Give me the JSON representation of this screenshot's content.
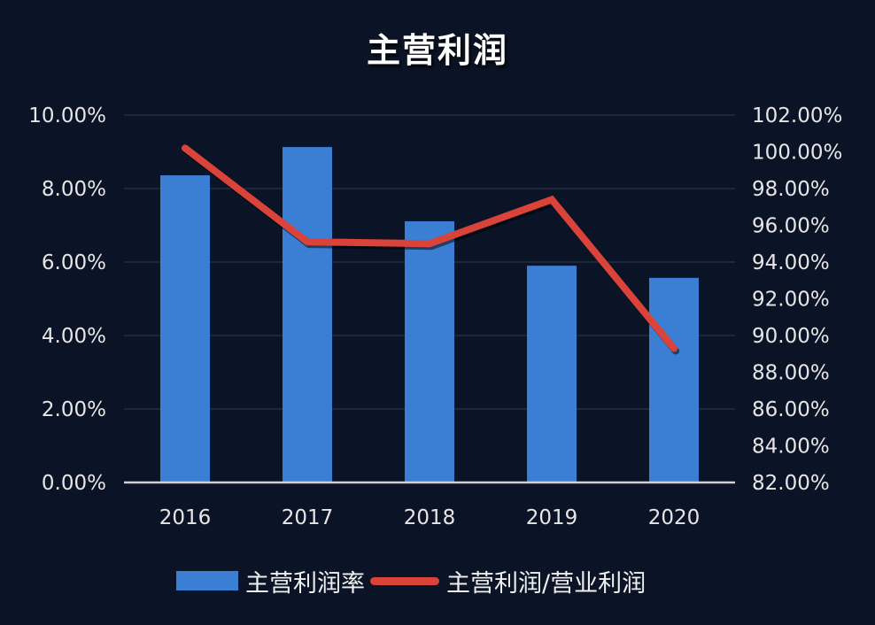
{
  "title": "主营利润",
  "colors": {
    "background": "#0b1326",
    "bar": "#3b7fd4",
    "line": "#d9433a",
    "grid": "#2a3346",
    "axis": "#d0d0d0",
    "text": "#e6e6e6"
  },
  "legend": {
    "bar_label": "主营利润率",
    "line_label": "主营利润/营业利润"
  },
  "chart_data": {
    "type": "bar+line",
    "title": "主营利润",
    "categories": [
      "2016",
      "2017",
      "2018",
      "2019",
      "2020"
    ],
    "series": [
      {
        "name": "主营利润率",
        "type": "bar",
        "axis": "left",
        "values": [
          8.36,
          9.13,
          7.11,
          5.9,
          5.57
        ],
        "unit": "%"
      },
      {
        "name": "主营利润/营业利润",
        "type": "line",
        "axis": "right",
        "values": [
          100.2,
          95.1,
          95.0,
          97.4,
          89.3
        ],
        "unit": "%"
      }
    ],
    "y_left": {
      "ylim": [
        0,
        10
      ],
      "ticks": [
        "0.00%",
        "2.00%",
        "4.00%",
        "6.00%",
        "8.00%",
        "10.00%"
      ]
    },
    "y_right": {
      "ylim": [
        82,
        102
      ],
      "ticks": [
        "82.00%",
        "84.00%",
        "86.00%",
        "88.00%",
        "90.00%",
        "92.00%",
        "94.00%",
        "96.00%",
        "98.00%",
        "100.00%",
        "102.00%"
      ]
    },
    "grid": true,
    "legend_position": "bottom"
  }
}
